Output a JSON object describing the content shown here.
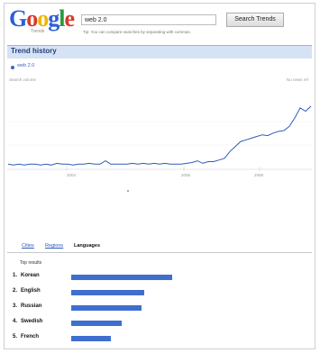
{
  "header": {
    "logo_text": "Google",
    "logo_sub": "Trends",
    "search_value": "web 2.0",
    "search_button_label": "Search Trends",
    "tip": "Tip: You can compare searches by separating with commas."
  },
  "trend": {
    "section_title": "Trend history",
    "legend_term": "web 2.0",
    "search_volume_label": "Search volume",
    "news_label": "No news ref",
    "x_ticks": [
      "2004",
      "2006",
      "2008"
    ]
  },
  "chart_data": {
    "type": "line",
    "x": [
      0,
      6,
      12,
      18,
      24,
      30,
      36,
      42,
      48,
      54,
      60,
      66,
      72,
      78,
      84,
      90,
      96,
      102,
      108,
      114,
      120,
      126,
      132,
      138,
      144,
      150,
      156,
      162,
      168,
      174,
      180,
      186,
      192,
      198,
      204,
      210,
      216,
      222,
      228,
      234,
      240,
      246,
      252,
      258,
      264,
      270,
      276,
      282,
      288,
      294,
      300,
      306,
      312,
      318,
      324,
      330,
      336
    ],
    "values": [
      5,
      4,
      5,
      4,
      5,
      5,
      4,
      5,
      4,
      6,
      5,
      5,
      4,
      5,
      5,
      6,
      5,
      5,
      9,
      5,
      5,
      5,
      5,
      6,
      5,
      6,
      5,
      6,
      5,
      6,
      5,
      5,
      5,
      6,
      7,
      9,
      6,
      8,
      8,
      10,
      12,
      20,
      26,
      32,
      34,
      36,
      38,
      40,
      39,
      42,
      44,
      45,
      50,
      60,
      72,
      68,
      74
    ],
    "ylim": [
      0,
      90
    ],
    "xlabel": "",
    "ylabel": ""
  },
  "tabs": [
    "Cities",
    "Regions",
    "Languages"
  ],
  "results": {
    "title": "Top results",
    "rows": [
      {
        "rank": "1.",
        "label": "Korean",
        "value": 100
      },
      {
        "rank": "2.",
        "label": "English",
        "value": 72
      },
      {
        "rank": "3.",
        "label": "Russian",
        "value": 70
      },
      {
        "rank": "4.",
        "label": "Swedish",
        "value": 50
      },
      {
        "rank": "5.",
        "label": "French",
        "value": 39
      }
    ]
  },
  "colors": {
    "line": "#2f5cb8",
    "bar": "#3e6fcf",
    "header_bar": "#d6e3f5"
  }
}
